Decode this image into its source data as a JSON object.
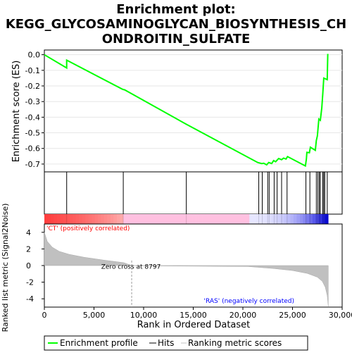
{
  "chart_data": {
    "type": "line",
    "title_lines": [
      "Enrichment plot:",
      "KEGG_GLYCOSAMINOGLYCAN_BIOSYNTHESIS_CH",
      "ONDROITIN_SULFATE"
    ],
    "es_panel": {
      "ylabel": "Enrichment score (ES)",
      "ylim": [
        -0.75,
        0.03
      ],
      "yticks": [
        0.0,
        -0.1,
        -0.2,
        -0.3,
        -0.4,
        -0.5,
        -0.6,
        -0.7
      ],
      "ytick_labels": [
        "0.0",
        "-0.1",
        "-0.2",
        "-0.3",
        "-0.4",
        "-0.5",
        "-0.6",
        "-0.7"
      ],
      "color": "#00ff00",
      "points": [
        [
          0,
          0.0
        ],
        [
          2250,
          -0.085
        ],
        [
          2250,
          -0.035
        ],
        [
          7900,
          -0.222
        ],
        [
          8100,
          -0.225
        ],
        [
          14300,
          -0.445
        ],
        [
          21500,
          -0.69
        ],
        [
          21900,
          -0.697
        ],
        [
          22100,
          -0.695
        ],
        [
          22400,
          -0.705
        ],
        [
          22600,
          -0.69
        ],
        [
          22900,
          -0.697
        ],
        [
          23100,
          -0.678
        ],
        [
          23300,
          -0.685
        ],
        [
          23600,
          -0.665
        ],
        [
          23900,
          -0.672
        ],
        [
          24100,
          -0.662
        ],
        [
          24350,
          -0.668
        ],
        [
          24500,
          -0.652
        ],
        [
          26300,
          -0.712
        ],
        [
          26400,
          -0.668
        ],
        [
          26450,
          -0.625
        ],
        [
          26700,
          -0.628
        ],
        [
          26800,
          -0.592
        ],
        [
          27300,
          -0.612
        ],
        [
          27400,
          -0.55
        ],
        [
          27500,
          -0.52
        ],
        [
          27550,
          -0.485
        ],
        [
          27650,
          -0.412
        ],
        [
          27800,
          -0.42
        ],
        [
          27950,
          -0.34
        ],
        [
          28050,
          -0.25
        ],
        [
          28150,
          -0.15
        ],
        [
          28500,
          -0.16
        ],
        [
          28550,
          0.005
        ]
      ]
    },
    "hits_panel": {
      "hit_positions": [
        2250,
        7950,
        14300,
        21600,
        21950,
        22500,
        22650,
        23150,
        23450,
        23900,
        24450,
        26350,
        26750,
        27400,
        27550,
        27700,
        27800,
        28050,
        28150,
        28250,
        28500
      ]
    },
    "metric_panel": {
      "ylabel": "Ranked list metric (Signal2Noise)",
      "xlabel": "Rank in Ordered Dataset",
      "ylim": [
        -5,
        5
      ],
      "yticks": [
        4,
        2,
        0,
        -2,
        -4
      ],
      "ytick_labels": [
        "4",
        "2",
        "0",
        "-2",
        "-4"
      ],
      "xlim": [
        0,
        30000
      ],
      "xticks": [
        0,
        5000,
        10000,
        15000,
        20000,
        25000,
        30000
      ],
      "xtick_labels": [
        "0",
        "5,000",
        "10,000",
        "15,000",
        "20,000",
        "25,000",
        "30,000"
      ],
      "zero_cross": 8797,
      "zero_cross_label": "Zero cross at 8797",
      "pos_label": "'CT' (positively correlated)",
      "neg_label": "'RAS' (negatively correlated)",
      "pos_color": "#ff0000",
      "neg_color": "#0000ff",
      "metric_curve": [
        [
          0,
          4.0
        ],
        [
          300,
          2.9
        ],
        [
          800,
          2.2
        ],
        [
          1500,
          1.7
        ],
        [
          2500,
          1.35
        ],
        [
          4000,
          1.0
        ],
        [
          6000,
          0.65
        ],
        [
          8000,
          0.35
        ],
        [
          8797,
          0.0
        ],
        [
          12000,
          -0.05
        ],
        [
          20500,
          -0.12
        ],
        [
          23000,
          -0.35
        ],
        [
          25000,
          -0.6
        ],
        [
          26500,
          -0.95
        ],
        [
          27500,
          -1.4
        ],
        [
          28000,
          -1.9
        ],
        [
          28300,
          -2.6
        ],
        [
          28500,
          -3.6
        ],
        [
          28600,
          -4.9
        ]
      ],
      "total_ranks": 28600
    },
    "legend": {
      "entries": [
        "Enrichment profile",
        "Hits",
        "Ranking metric scores"
      ]
    }
  }
}
